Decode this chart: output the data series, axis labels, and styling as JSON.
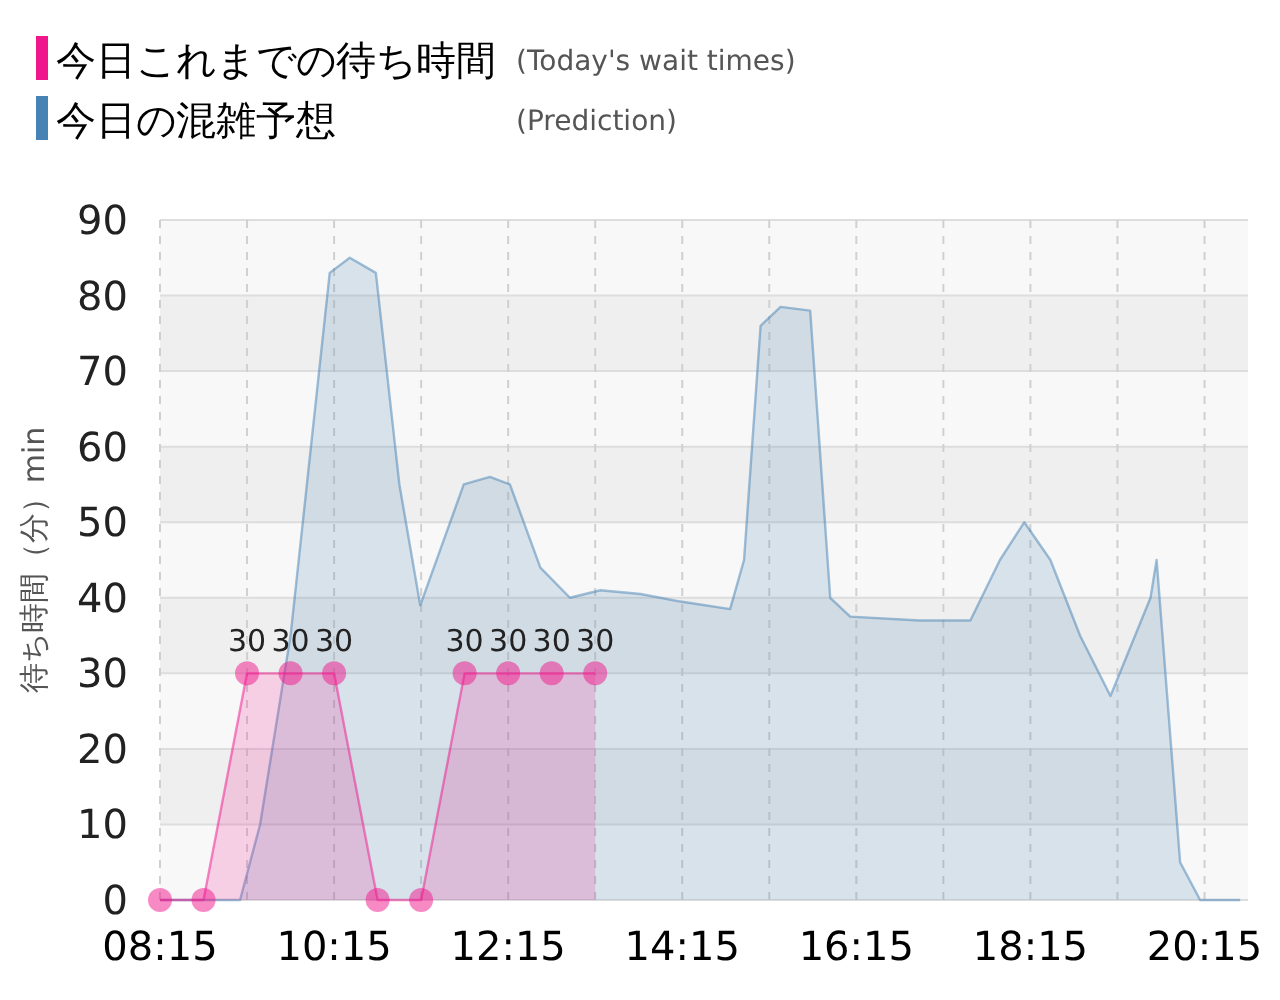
{
  "chart_data": {
    "type": "area",
    "ylabel": "待ち時間（分）min",
    "series": [
      {
        "name": "今日の混雑予想 (Prediction)",
        "color": "#4682b4",
        "marker": "none",
        "x": [
          8.25,
          9.17,
          9.4,
          9.75,
          10.2,
          10.43,
          10.73,
          11.0,
          11.24,
          11.74,
          12.04,
          12.27,
          12.62,
          12.96,
          13.31,
          13.77,
          14.23,
          14.8,
          14.96,
          15.15,
          15.38,
          15.72,
          15.95,
          16.18,
          16.98,
          17.56,
          17.9,
          18.18,
          18.48,
          18.82,
          19.17,
          19.63,
          19.7,
          19.97,
          20.2,
          20.66
        ],
        "values": [
          0,
          0,
          10,
          35,
          83,
          85,
          83,
          55,
          39,
          55,
          56,
          55,
          44,
          40,
          41,
          40.5,
          39.5,
          38.5,
          45,
          76,
          78.5,
          78,
          40,
          37.5,
          37,
          37,
          45,
          50,
          45,
          35,
          27,
          40,
          45,
          5,
          0,
          0
        ]
      },
      {
        "name": "今日これまでの待ち時間 (Today's wait times)",
        "color": "#f0168c",
        "marker": "circle",
        "x": [
          8.25,
          8.75,
          9.25,
          9.75,
          10.25,
          10.75,
          11.25,
          11.75,
          12.25,
          12.75,
          13.25
        ],
        "values": [
          0,
          0,
          30,
          30,
          30,
          0,
          0,
          30,
          30,
          30,
          30
        ],
        "value_labels": [
          null,
          null,
          "30",
          "30",
          "30",
          null,
          null,
          "30",
          "30",
          "30",
          "30"
        ]
      }
    ],
    "xlim": [
      8.25,
      20.75
    ],
    "xticks": [
      {
        "value": 8.25,
        "label": "08:15"
      },
      {
        "value": 10.25,
        "label": "10:15"
      },
      {
        "value": 12.25,
        "label": "12:15"
      },
      {
        "value": 14.25,
        "label": "14:15"
      },
      {
        "value": 16.25,
        "label": "16:15"
      },
      {
        "value": 18.25,
        "label": "18:15"
      },
      {
        "value": 20.25,
        "label": "20:15"
      }
    ],
    "ylim": [
      0,
      90
    ],
    "yticks": [
      0,
      10,
      20,
      30,
      40,
      50,
      60,
      70,
      80,
      90
    ],
    "grid": true,
    "legend": "top left"
  }
}
